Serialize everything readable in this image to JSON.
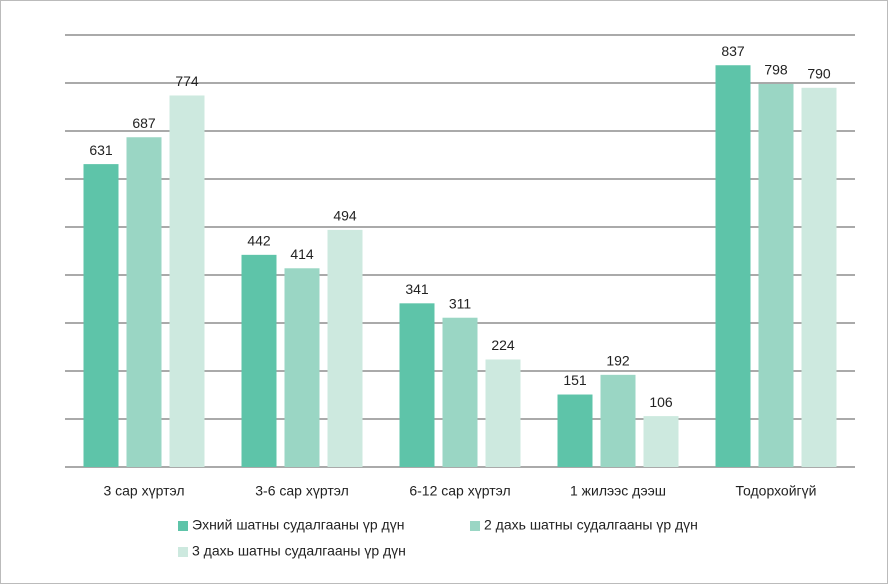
{
  "chart_data": {
    "type": "bar",
    "categories": [
      "3 сар хүртэл",
      "3-6 сар хүртэл",
      "6-12 сар хүртэл",
      "1 жилээс дээш",
      "Тодорхойгүй"
    ],
    "series": [
      {
        "name": "Эхний шатны судалгааны үр дүн",
        "color": "#5ec4a9",
        "values": [
          631,
          442,
          341,
          151,
          837
        ]
      },
      {
        "name": "2 дахь шатны судалгааны үр дүн",
        "color": "#9ad6c4",
        "values": [
          687,
          414,
          311,
          192,
          798
        ]
      },
      {
        "name": "3 дахь шатны судалгааны үр дүн",
        "color": "#cde9df",
        "values": [
          774,
          494,
          224,
          106,
          790
        ]
      }
    ],
    "ylim": [
      0,
      900
    ],
    "yticks": [
      0,
      100,
      200,
      300,
      400,
      500,
      600,
      700,
      800,
      900
    ],
    "grid": true
  }
}
